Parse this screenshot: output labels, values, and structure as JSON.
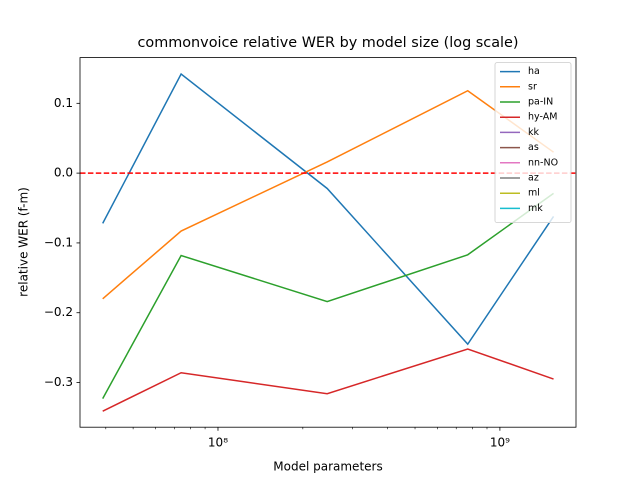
{
  "chart_data": {
    "type": "line",
    "title": "commonvoice relative WER by model size (log scale)",
    "xlabel": "Model parameters",
    "ylabel": "relative WER (f-m)",
    "xscale": "log",
    "x": [
      39000000,
      74000000,
      244000000,
      769000000,
      1550000000
    ],
    "series": [
      {
        "name": "ha",
        "color": "#1f77b4",
        "values": [
          -0.072,
          0.142,
          -0.022,
          -0.245,
          -0.062
        ]
      },
      {
        "name": "sr",
        "color": "#ff7f0e",
        "values": [
          -0.18,
          -0.083,
          0.016,
          0.118,
          0.03
        ]
      },
      {
        "name": "pa-IN",
        "color": "#2ca02c",
        "values": [
          -0.323,
          -0.118,
          -0.184,
          -0.117,
          -0.029
        ]
      },
      {
        "name": "hy-AM",
        "color": "#d62728",
        "values": [
          -0.341,
          -0.286,
          -0.316,
          -0.252,
          -0.295
        ]
      },
      {
        "name": "kk",
        "color": "#9467bd",
        "values": [
          null,
          null,
          null,
          null,
          null
        ]
      },
      {
        "name": "as",
        "color": "#8c564b",
        "values": [
          null,
          null,
          null,
          null,
          null
        ]
      },
      {
        "name": "nn-NO",
        "color": "#e377c2",
        "values": [
          null,
          null,
          null,
          null,
          null
        ]
      },
      {
        "name": "az",
        "color": "#7f7f7f",
        "values": [
          null,
          null,
          null,
          null,
          null
        ]
      },
      {
        "name": "ml",
        "color": "#bcbd22",
        "values": [
          null,
          null,
          null,
          null,
          null
        ]
      },
      {
        "name": "mk",
        "color": "#17becf",
        "values": [
          null,
          null,
          null,
          null,
          null
        ]
      }
    ],
    "hline": {
      "value": 0,
      "color": "#ff0000"
    },
    "xlim": [
      32400000,
      1862000000
    ],
    "xticks": [
      {
        "value": 100000000,
        "label": "10⁸"
      },
      {
        "value": 1000000000,
        "label": "10⁹"
      }
    ],
    "xminorticks": [
      40000000,
      50000000,
      60000000,
      70000000,
      80000000,
      90000000,
      200000000,
      300000000,
      400000000,
      500000000,
      600000000,
      700000000,
      800000000,
      900000000
    ],
    "ylim": [
      -0.364,
      0.1655
    ],
    "yticks": [
      {
        "value": 0.1,
        "label": "0.1"
      },
      {
        "value": 0,
        "label": "0.0"
      },
      {
        "value": -0.1,
        "label": "−0.1"
      },
      {
        "value": -0.2,
        "label": "−0.2"
      },
      {
        "value": -0.3,
        "label": "−0.3"
      }
    ],
    "legend": "upper right"
  }
}
